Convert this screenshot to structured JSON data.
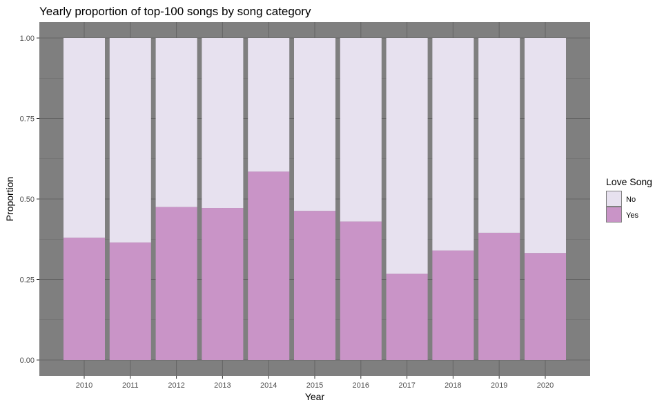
{
  "chart_data": {
    "type": "bar",
    "stacked": true,
    "title": "Yearly proportion of top-100 songs by song category",
    "xlabel": "Year",
    "ylabel": "Proportion",
    "categories": [
      "2010",
      "2011",
      "2012",
      "2013",
      "2014",
      "2015",
      "2016",
      "2017",
      "2018",
      "2019",
      "2020"
    ],
    "ylim": [
      0,
      1
    ],
    "yticks": [
      "0.00",
      "0.25",
      "0.50",
      "0.75",
      "1.00"
    ],
    "series": [
      {
        "name": "Yes",
        "color": "#c994c7",
        "values": [
          0.38,
          0.365,
          0.475,
          0.472,
          0.585,
          0.463,
          0.43,
          0.268,
          0.34,
          0.395,
          0.332
        ]
      },
      {
        "name": "No",
        "color": "#e7e1ef",
        "values": [
          0.62,
          0.635,
          0.525,
          0.528,
          0.415,
          0.537,
          0.57,
          0.732,
          0.66,
          0.605,
          0.668
        ]
      }
    ],
    "legend": {
      "title": "Love Song",
      "position": "right",
      "items": [
        "No",
        "Yes"
      ]
    },
    "panel_background": "#7f7f7f",
    "grid": true
  }
}
